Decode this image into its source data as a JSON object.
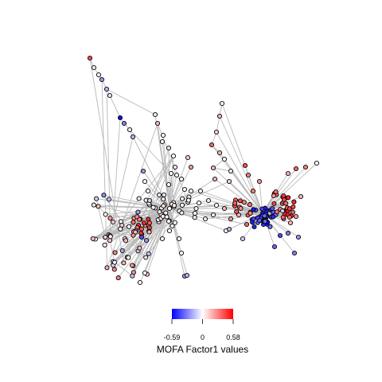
{
  "legend": {
    "title": "MOFA Factor1 values",
    "min_label": "-0.59",
    "mid_label": "0",
    "max_label": "0.58",
    "min": -0.59,
    "max": 0.58,
    "low_color": "#0000ff",
    "mid_color": "#ffffff",
    "high_color": "#ff0000"
  },
  "graph": {
    "node_border": "#000000",
    "edge_color": "#b8b8b8"
  }
}
